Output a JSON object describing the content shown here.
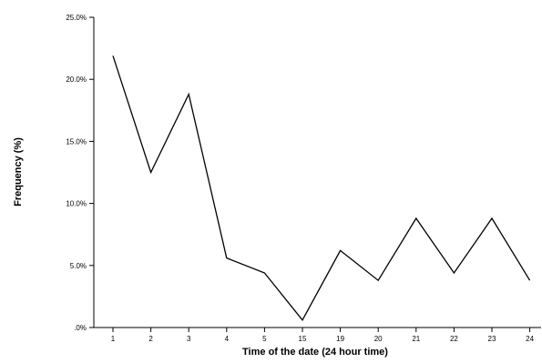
{
  "chart_data": {
    "type": "line",
    "categories": [
      "1",
      "2",
      "3",
      "4",
      "5",
      "15",
      "19",
      "20",
      "21",
      "22",
      "23",
      "24"
    ],
    "values": [
      21.9,
      12.5,
      18.8,
      5.6,
      4.4,
      0.6,
      6.2,
      3.8,
      8.8,
      4.4,
      8.8,
      3.8
    ],
    "title": "",
    "xlabel": "Time of the date (24 hour time)",
    "ylabel": "Frequency (%)",
    "ylim": [
      0,
      25
    ],
    "yticks": [
      ".0%",
      "5.0%",
      "10.0%",
      "15.0%",
      "20.0%",
      "25.0%"
    ],
    "grid": false,
    "line_color": "#000000"
  }
}
